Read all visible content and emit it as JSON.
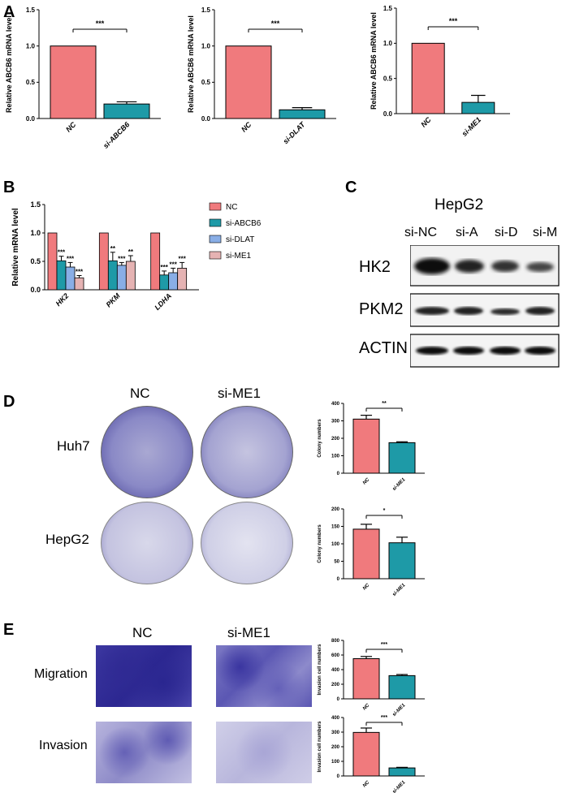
{
  "panels": {
    "A": "A",
    "B": "B",
    "C": "C",
    "D": "D",
    "E": "E"
  },
  "colors": {
    "nc": "#f07a7d",
    "abcb6": "#1e9aa7",
    "dlat": "#89aee6",
    "me1": "#e5b3b3",
    "stain": "#5a4fb0"
  },
  "chart_data": [
    {
      "id": "A1",
      "type": "bar",
      "categories": [
        "NC",
        "si-ABCB6"
      ],
      "values": [
        1.0,
        0.2
      ],
      "errors": [
        0,
        0.03
      ],
      "ylabel": "Relative ABCB6 mRNA level",
      "yticks": [
        "0.0",
        "0.5",
        "1.0",
        "1.5"
      ],
      "ylim": [
        0,
        1.5
      ],
      "significance": "***"
    },
    {
      "id": "A2",
      "type": "bar",
      "categories": [
        "NC",
        "si-DLAT"
      ],
      "values": [
        1.0,
        0.12
      ],
      "errors": [
        0,
        0.03
      ],
      "ylabel": "Relative ABCB6 mRNA level",
      "yticks": [
        "0.0",
        "0.5",
        "1.0",
        "1.5"
      ],
      "ylim": [
        0,
        1.5
      ],
      "significance": "***"
    },
    {
      "id": "A3",
      "type": "bar",
      "categories": [
        "NC",
        "si-ME1"
      ],
      "values": [
        1.0,
        0.16
      ],
      "errors": [
        0,
        0.1
      ],
      "ylabel": "Relative ABCB6 mRNA level",
      "yticks": [
        "0.0",
        "0.5",
        "1.0",
        "1.5"
      ],
      "ylim": [
        0,
        1.5
      ],
      "significance": "***"
    },
    {
      "id": "B",
      "type": "bar",
      "categories": [
        "HK2",
        "PKM",
        "LDHA"
      ],
      "ylabel": "Relative mRNA level",
      "yticks": [
        "0.0",
        "0.5",
        "1.0",
        "1.5"
      ],
      "ylim": [
        0,
        1.5
      ],
      "series": [
        {
          "name": "NC",
          "values": [
            1.0,
            1.0,
            1.0
          ],
          "errors": [
            0,
            0,
            0
          ],
          "sig": [
            "",
            "",
            ""
          ]
        },
        {
          "name": "si-ABCB6",
          "values": [
            0.51,
            0.51,
            0.26
          ],
          "errors": [
            0.08,
            0.15,
            0.07
          ],
          "sig": [
            "***",
            "**",
            "***"
          ]
        },
        {
          "name": "si-DLAT",
          "values": [
            0.4,
            0.43,
            0.3
          ],
          "errors": [
            0.08,
            0.05,
            0.08
          ],
          "sig": [
            "***",
            "***",
            "***"
          ]
        },
        {
          "name": "si-ME1",
          "values": [
            0.21,
            0.5,
            0.38
          ],
          "errors": [
            0.04,
            0.1,
            0.1
          ],
          "sig": [
            "***",
            "**",
            "***"
          ]
        }
      ]
    },
    {
      "id": "D1",
      "type": "bar",
      "categories": [
        "NC",
        "si-ME1"
      ],
      "values": [
        310,
        175
      ],
      "errors": [
        22,
        5
      ],
      "ylabel": "Colony numbers",
      "yticks": [
        "0",
        "100",
        "200",
        "300",
        "400"
      ],
      "ylim": [
        0,
        400
      ],
      "significance": "**"
    },
    {
      "id": "D2",
      "type": "bar",
      "categories": [
        "NC",
        "si-ME1"
      ],
      "values": [
        142,
        103
      ],
      "errors": [
        14,
        16
      ],
      "ylabel": "Colony numbers",
      "yticks": [
        "0",
        "50",
        "100",
        "150",
        "200"
      ],
      "ylim": [
        0,
        200
      ],
      "significance": "*"
    },
    {
      "id": "E1",
      "type": "bar",
      "categories": [
        "NC",
        "si-ME1"
      ],
      "values": [
        550,
        318
      ],
      "errors": [
        30,
        15
      ],
      "ylabel": "Invasion cell numbers",
      "yticks": [
        "0",
        "200",
        "400",
        "600",
        "800"
      ],
      "ylim": [
        0,
        800
      ],
      "significance": "***"
    },
    {
      "id": "E2",
      "type": "bar",
      "categories": [
        "NC",
        "si-ME1"
      ],
      "values": [
        298,
        55
      ],
      "errors": [
        30,
        4
      ],
      "ylabel": "Invasion cell numbers",
      "yticks": [
        "0",
        "100",
        "200",
        "300",
        "400"
      ],
      "ylim": [
        0,
        400
      ],
      "significance": "***"
    }
  ],
  "western": {
    "cell_line": "HepG2",
    "lanes": [
      "si-NC",
      "si-A",
      "si-D",
      "si-M"
    ],
    "proteins": [
      "HK2",
      "PKM2",
      "ACTIN"
    ]
  },
  "colony": {
    "columns": [
      "NC",
      "si-ME1"
    ],
    "rows": [
      "Huh7",
      "HepG2"
    ]
  },
  "transwell": {
    "columns": [
      "NC",
      "si-ME1"
    ],
    "rows": [
      "Migration",
      "Invasion"
    ]
  }
}
